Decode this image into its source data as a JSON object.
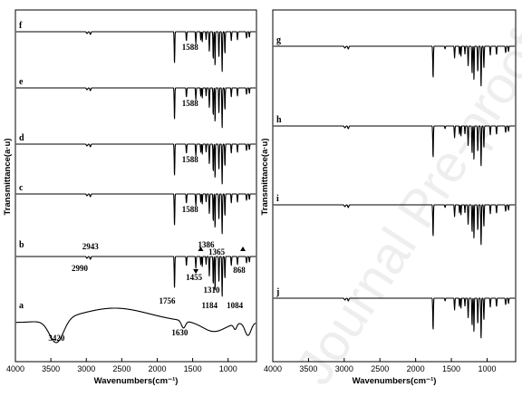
{
  "chart_data": [
    {
      "type": "line",
      "xlabel": "Wavenumbers(cm⁻¹)",
      "ylabel": "Transmittance(a·u)",
      "xlim": [
        4000,
        600
      ],
      "x_reversed": true,
      "x_ticks": [
        4000,
        3500,
        3000,
        2500,
        2000,
        1500,
        1000
      ],
      "x_tick_labels": [
        "4000",
        "3500",
        "3000",
        "2500",
        "2000",
        "1500",
        "1000"
      ],
      "series": [
        {
          "name": "f",
          "peaks": [
            1756,
            1588,
            1455,
            1365,
            1310,
            1184,
            1084,
            868
          ]
        },
        {
          "name": "e",
          "peaks": [
            1756,
            1588,
            1455,
            1365,
            1310,
            1184,
            1084,
            868
          ]
        },
        {
          "name": "d",
          "peaks": [
            1756,
            1588,
            1455,
            1365,
            1310,
            1184,
            1084,
            868
          ]
        },
        {
          "name": "c",
          "peaks": [
            1756,
            1588,
            1455,
            1365,
            1310,
            1184,
            1084,
            868
          ]
        },
        {
          "name": "b",
          "peaks": [
            2990,
            2943,
            1756,
            1455,
            1386,
            1365,
            1310,
            1184,
            1084,
            868
          ]
        },
        {
          "name": "a",
          "peaks": [
            3420,
            1630
          ]
        }
      ],
      "annotations": [
        {
          "series": "f",
          "text": "1588",
          "x": 1588
        },
        {
          "series": "e",
          "text": "1588",
          "x": 1588
        },
        {
          "series": "d",
          "text": "1588",
          "x": 1588
        },
        {
          "series": "c",
          "text": "1588",
          "x": 1588
        },
        {
          "series": "b",
          "text": "2943",
          "x": 2943
        },
        {
          "series": "b",
          "text": "2990",
          "x": 2990
        },
        {
          "series": "b",
          "text": "1386",
          "x": 1386
        },
        {
          "series": "b",
          "text": "1365",
          "x": 1365
        },
        {
          "series": "b",
          "text": "1455",
          "x": 1455
        },
        {
          "series": "b",
          "text": "1310",
          "x": 1310
        },
        {
          "series": "b",
          "text": "868",
          "x": 868
        },
        {
          "series": "b",
          "text": "1756",
          "x": 1756
        },
        {
          "series": "b",
          "text": "1184",
          "x": 1184
        },
        {
          "series": "b",
          "text": "1084",
          "x": 1084
        },
        {
          "series": "a",
          "text": "3420",
          "x": 3420
        },
        {
          "series": "a",
          "text": "1630",
          "x": 1630
        }
      ]
    },
    {
      "type": "line",
      "xlabel": "Wavenumbers(cm⁻¹)",
      "ylabel": "Transmittance(a·u)",
      "xlim": [
        4000,
        600
      ],
      "x_reversed": true,
      "x_ticks": [
        4000,
        3500,
        3000,
        2500,
        2000,
        1500,
        1000
      ],
      "x_tick_labels": [
        "4000",
        "3500",
        "3000",
        "2500",
        "2000",
        "1500",
        "1000"
      ],
      "series": [
        {
          "name": "g",
          "peaks": [
            1756,
            1455,
            1365,
            1310,
            1184,
            1084,
            868
          ]
        },
        {
          "name": "h",
          "peaks": [
            1756,
            1455,
            1365,
            1310,
            1184,
            1084,
            868
          ]
        },
        {
          "name": "i",
          "peaks": [
            1756,
            1455,
            1365,
            1310,
            1184,
            1084,
            868
          ]
        },
        {
          "name": "j",
          "peaks": [
            1756,
            1455,
            1365,
            1310,
            1184,
            1084,
            868
          ]
        }
      ],
      "annotations": []
    }
  ],
  "watermark": "Journal Pre-proof"
}
